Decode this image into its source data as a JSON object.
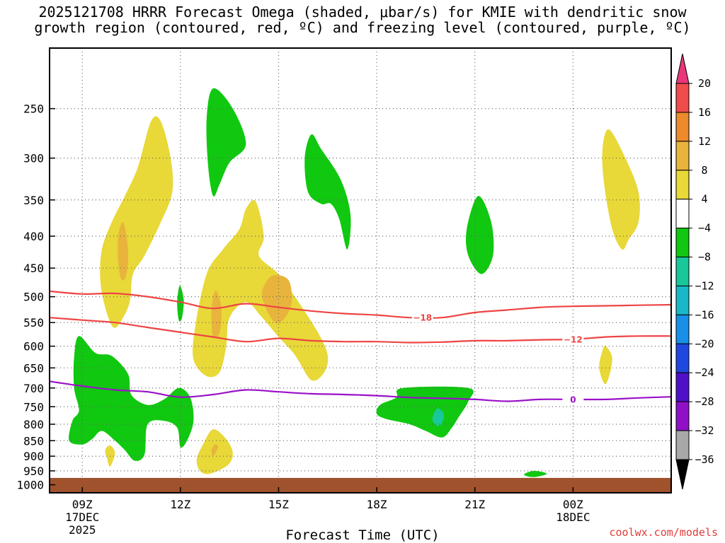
{
  "title": {
    "line1": "2025121708 HRRR Forecast Omega (shaded, μbar/s) for KMIE with dendritic snow",
    "line2": "growth region (contoured, red, ºC) and freezing level (contoured, purple, ºC)"
  },
  "credit": "coolwx.com/models",
  "chart_data": {
    "type": "contour",
    "xlabel": "Forecast Time (UTC)",
    "x_range_hours": [
      8,
      27
    ],
    "x_ticks": [
      {
        "hour": 9,
        "label": "09Z",
        "sub1": "17DEC",
        "sub2": "2025"
      },
      {
        "hour": 12,
        "label": "12Z",
        "sub1": "",
        "sub2": ""
      },
      {
        "hour": 15,
        "label": "15Z",
        "sub1": "",
        "sub2": ""
      },
      {
        "hour": 18,
        "label": "18Z",
        "sub1": "",
        "sub2": ""
      },
      {
        "hour": 21,
        "label": "21Z",
        "sub1": "",
        "sub2": ""
      },
      {
        "hour": 24,
        "label": "00Z",
        "sub1": "18DEC",
        "sub2": ""
      }
    ],
    "y_ticks_hpa": [
      250,
      300,
      350,
      400,
      450,
      500,
      550,
      600,
      650,
      700,
      750,
      800,
      850,
      900,
      950,
      1000
    ],
    "y_range_hpa": [
      200,
      1030
    ],
    "colorbar": {
      "levels": [
        20,
        16,
        12,
        8,
        4,
        -4,
        -8,
        -12,
        -16,
        -20,
        -24,
        -28,
        -32,
        -36
      ],
      "colors_top_to_bottom": [
        "#e8387a",
        "#f04c4c",
        "#ec8a2c",
        "#e8b43c",
        "#e8d838",
        "#ffffff",
        "#10c810",
        "#18c89a",
        "#18b8c8",
        "#1890e8",
        "#2048e0",
        "#5010c8",
        "#9010c8",
        "#a8a8a8",
        "#000000"
      ]
    },
    "contours": [
      {
        "name": "-18",
        "color": "#ee4444",
        "label": "−18",
        "label_hour": 19.4,
        "points": [
          [
            8,
            490
          ],
          [
            9,
            495
          ],
          [
            10,
            494
          ],
          [
            11,
            500
          ],
          [
            12,
            510
          ],
          [
            13,
            522
          ],
          [
            14,
            513
          ],
          [
            15,
            520
          ],
          [
            16,
            527
          ],
          [
            17,
            532
          ],
          [
            18,
            535
          ],
          [
            19,
            540
          ],
          [
            20,
            540
          ],
          [
            21,
            530
          ],
          [
            22,
            525
          ],
          [
            23,
            520
          ],
          [
            24,
            518
          ],
          [
            25,
            517
          ],
          [
            26,
            516
          ],
          [
            27,
            515
          ]
        ]
      },
      {
        "name": "-12",
        "color": "#ee4444",
        "label": "−12",
        "label_hour": 24.0,
        "points": [
          [
            8,
            540
          ],
          [
            9,
            545
          ],
          [
            10,
            550
          ],
          [
            11,
            560
          ],
          [
            12,
            570
          ],
          [
            13,
            580
          ],
          [
            14,
            590
          ],
          [
            15,
            583
          ],
          [
            16,
            588
          ],
          [
            17,
            590
          ],
          [
            18,
            590
          ],
          [
            19,
            592
          ],
          [
            20,
            591
          ],
          [
            21,
            588
          ],
          [
            22,
            588
          ],
          [
            23,
            586
          ],
          [
            24,
            585
          ],
          [
            25,
            580
          ],
          [
            26,
            578
          ],
          [
            27,
            578
          ]
        ]
      },
      {
        "name": "0",
        "color": "#9a10c8",
        "label": "0",
        "label_hour": 24.0,
        "points": [
          [
            8,
            683
          ],
          [
            9,
            695
          ],
          [
            10,
            705
          ],
          [
            11,
            710
          ],
          [
            12,
            724
          ],
          [
            13,
            717
          ],
          [
            14,
            705
          ],
          [
            15,
            710
          ],
          [
            16,
            715
          ],
          [
            17,
            717
          ],
          [
            18,
            720
          ],
          [
            19,
            725
          ],
          [
            20,
            727
          ],
          [
            21,
            730
          ],
          [
            22,
            735
          ],
          [
            23,
            730
          ],
          [
            24,
            730
          ],
          [
            25,
            730
          ],
          [
            26,
            726
          ],
          [
            27,
            723
          ]
        ]
      }
    ],
    "shaded_regions": [
      {
        "name": "yellow-west-tower",
        "color": "#e8d838",
        "points": [
          [
            11.4,
            262
          ],
          [
            11.7,
            300
          ],
          [
            11.75,
            340
          ],
          [
            11.4,
            380
          ],
          [
            10.9,
            430
          ],
          [
            10.55,
            460
          ],
          [
            10.45,
            510
          ],
          [
            10.2,
            545
          ],
          [
            9.95,
            560
          ],
          [
            9.7,
            520
          ],
          [
            9.55,
            470
          ],
          [
            9.6,
            420
          ],
          [
            9.9,
            380
          ],
          [
            10.3,
            345
          ],
          [
            10.7,
            310
          ],
          [
            11.1,
            262
          ]
        ]
      },
      {
        "name": "orange-west-blob",
        "color": "#e8b43c",
        "points": [
          [
            10.25,
            380
          ],
          [
            10.4,
            420
          ],
          [
            10.35,
            460
          ],
          [
            10.2,
            470
          ],
          [
            10.1,
            440
          ],
          [
            10.1,
            400
          ]
        ]
      },
      {
        "name": "yellow-central",
        "color": "#e8d838",
        "points": [
          [
            14.3,
            352
          ],
          [
            14.55,
            400
          ],
          [
            14.4,
            430
          ],
          [
            15.0,
            460
          ],
          [
            15.5,
            500
          ],
          [
            16.2,
            570
          ],
          [
            16.5,
            620
          ],
          [
            16.4,
            660
          ],
          [
            16.0,
            680
          ],
          [
            15.5,
            620
          ],
          [
            15.0,
            580
          ],
          [
            14.5,
            540
          ],
          [
            14.0,
            510
          ],
          [
            13.5,
            540
          ],
          [
            13.4,
            600
          ],
          [
            13.2,
            660
          ],
          [
            12.8,
            670
          ],
          [
            12.4,
            630
          ],
          [
            12.45,
            560
          ],
          [
            12.8,
            460
          ],
          [
            13.3,
            420
          ],
          [
            13.8,
            390
          ],
          [
            14.0,
            362
          ]
        ]
      },
      {
        "name": "orange-central-left",
        "color": "#e8b43c",
        "points": [
          [
            13.1,
            490
          ],
          [
            13.25,
            520
          ],
          [
            13.2,
            570
          ],
          [
            13.0,
            580
          ],
          [
            12.95,
            530
          ],
          [
            13.0,
            500
          ]
        ]
      },
      {
        "name": "orange-central-right",
        "color": "#e8b43c",
        "points": [
          [
            14.8,
            463
          ],
          [
            15.3,
            470
          ],
          [
            15.4,
            510
          ],
          [
            15.2,
            540
          ],
          [
            14.9,
            550
          ],
          [
            14.6,
            520
          ],
          [
            14.5,
            490
          ]
        ]
      },
      {
        "name": "green-upper-left",
        "color": "#10c810",
        "points": [
          [
            13.0,
            232
          ],
          [
            13.6,
            250
          ],
          [
            14.0,
            285
          ],
          [
            13.5,
            305
          ],
          [
            13.2,
            330
          ],
          [
            13.0,
            345
          ],
          [
            12.85,
            310
          ],
          [
            12.8,
            260
          ]
        ]
      },
      {
        "name": "green-upper-mid",
        "color": "#10c810",
        "points": [
          [
            16.0,
            275
          ],
          [
            16.3,
            290
          ],
          [
            16.9,
            325
          ],
          [
            17.2,
            370
          ],
          [
            17.1,
            420
          ],
          [
            16.85,
            375
          ],
          [
            16.6,
            355
          ],
          [
            16.3,
            355
          ],
          [
            15.9,
            340
          ],
          [
            15.8,
            300
          ]
        ]
      },
      {
        "name": "green-21z",
        "color": "#10c810",
        "points": [
          [
            21.1,
            345
          ],
          [
            21.5,
            380
          ],
          [
            21.55,
            430
          ],
          [
            21.2,
            460
          ],
          [
            20.8,
            430
          ],
          [
            20.75,
            390
          ]
        ]
      },
      {
        "name": "yellow-upper-right",
        "color": "#e8d838",
        "points": [
          [
            25.1,
            270
          ],
          [
            25.6,
            300
          ],
          [
            26.0,
            340
          ],
          [
            26.0,
            380
          ],
          [
            25.7,
            405
          ],
          [
            25.5,
            420
          ],
          [
            25.2,
            390
          ],
          [
            24.95,
            330
          ],
          [
            24.9,
            290
          ]
        ]
      },
      {
        "name": "yellow-right-small",
        "color": "#e8d838",
        "points": [
          [
            25.0,
            600
          ],
          [
            25.2,
            630
          ],
          [
            25.0,
            690
          ],
          [
            24.8,
            650
          ],
          [
            24.9,
            610
          ]
        ]
      },
      {
        "name": "green-narrow-12z",
        "color": "#10c810",
        "points": [
          [
            11.98,
            480
          ],
          [
            12.1,
            505
          ],
          [
            12.05,
            540
          ],
          [
            11.95,
            545
          ],
          [
            11.9,
            510
          ]
        ]
      },
      {
        "name": "green-lower-left",
        "color": "#10c810",
        "points": [
          [
            8.9,
            578
          ],
          [
            9.4,
            615
          ],
          [
            9.9,
            622
          ],
          [
            10.4,
            665
          ],
          [
            10.5,
            718
          ],
          [
            11.0,
            745
          ],
          [
            11.5,
            730
          ],
          [
            11.95,
            700
          ],
          [
            12.3,
            725
          ],
          [
            12.4,
            790
          ],
          [
            12.2,
            850
          ],
          [
            12.0,
            870
          ],
          [
            11.9,
            810
          ],
          [
            11.5,
            790
          ],
          [
            11.0,
            800
          ],
          [
            10.9,
            895
          ],
          [
            10.6,
            915
          ],
          [
            10.3,
            880
          ],
          [
            10.0,
            850
          ],
          [
            9.6,
            820
          ],
          [
            9.3,
            845
          ],
          [
            9.0,
            862
          ],
          [
            8.6,
            850
          ],
          [
            8.7,
            790
          ],
          [
            8.9,
            760
          ],
          [
            8.75,
            700
          ],
          [
            8.75,
            625
          ]
        ]
      },
      {
        "name": "green-lower-mid",
        "color": "#10c810",
        "points": [
          [
            18.8,
            700
          ],
          [
            20.8,
            700
          ],
          [
            20.8,
            735
          ],
          [
            20.5,
            780
          ],
          [
            20.3,
            810
          ],
          [
            20.0,
            840
          ],
          [
            19.5,
            820
          ],
          [
            19.0,
            800
          ],
          [
            18.3,
            785
          ],
          [
            18.0,
            770
          ],
          [
            18.1,
            745
          ],
          [
            18.6,
            725
          ]
        ]
      },
      {
        "name": "teal-lower-mid",
        "color": "#18c89a",
        "points": [
          [
            19.85,
            755
          ],
          [
            20.05,
            770
          ],
          [
            20.0,
            795
          ],
          [
            19.85,
            805
          ],
          [
            19.7,
            785
          ]
        ]
      },
      {
        "name": "yellow-lower-13z",
        "color": "#e8d838",
        "points": [
          [
            13.0,
            815
          ],
          [
            13.4,
            845
          ],
          [
            13.6,
            890
          ],
          [
            13.45,
            930
          ],
          [
            12.9,
            960
          ],
          [
            12.6,
            950
          ],
          [
            12.5,
            910
          ],
          [
            12.7,
            860
          ]
        ]
      },
      {
        "name": "orange-lower-13z",
        "color": "#e8b43c",
        "points": [
          [
            13.05,
            862
          ],
          [
            13.15,
            870
          ],
          [
            13.0,
            900
          ],
          [
            12.95,
            880
          ]
        ]
      },
      {
        "name": "yellow-lower-small",
        "color": "#e8d838",
        "points": [
          [
            9.85,
            865
          ],
          [
            10.0,
            890
          ],
          [
            9.85,
            935
          ],
          [
            9.75,
            905
          ],
          [
            9.7,
            880
          ]
        ]
      },
      {
        "name": "green-lower-small",
        "color": "#10c810",
        "points": [
          [
            22.8,
            950
          ],
          [
            23.2,
            960
          ],
          [
            22.8,
            972
          ],
          [
            22.5,
            963
          ]
        ]
      }
    ],
    "terrain": {
      "color": "#a0522d",
      "top_hpa": 975
    }
  }
}
